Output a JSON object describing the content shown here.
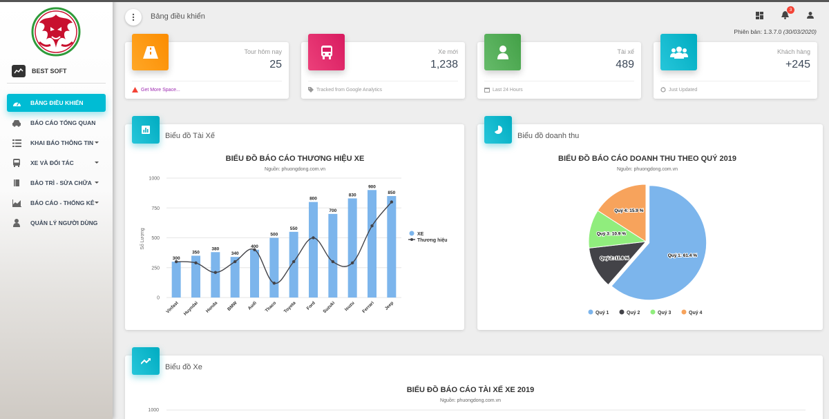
{
  "app": {
    "brand_name": "BEST SOFT",
    "page_title": "Bảng điều khiển",
    "version_label": "Phiên bản: 1.3.7.0",
    "version_date": "(30/03/2020)",
    "notification_count": "3"
  },
  "sidebar": {
    "items": [
      {
        "label": "BẢNG ĐIỀU KHIỂN",
        "icon": "dashboard-icon",
        "active": true
      },
      {
        "label": "BÁO CÁO TỔNG QUAN",
        "icon": "car-icon"
      },
      {
        "label": "KHAI BÁO THÔNG TIN",
        "icon": "list-icon",
        "caret": true
      },
      {
        "label": "XE VÀ ĐỐI TÁC",
        "icon": "bus-icon",
        "caret": true
      },
      {
        "label": "BẢO TRÌ - SỬA CHỮA",
        "icon": "book-icon",
        "caret": true
      },
      {
        "label": "BÁO CÁO - THỐNG KÊ",
        "icon": "area-chart-icon",
        "caret": true
      },
      {
        "label": "QUẢN LÝ NGƯỜI DÙNG",
        "icon": "user-icon"
      }
    ]
  },
  "stats": [
    {
      "label": "Tour hôm nay",
      "value": "25",
      "footer": "Get More Space...",
      "color": "#ff9800"
    },
    {
      "label": "Xe mới",
      "value": "1,238",
      "footer": "Tracked from Google Analytics",
      "color": "#e91e63"
    },
    {
      "label": "Tài xế",
      "value": "489",
      "footer": "Last 24 Hours",
      "color": "#4caf50"
    },
    {
      "label": "Khách hàng",
      "value": "+245",
      "footer": "Just Updated",
      "color": "#00bcd4"
    }
  ],
  "panels": {
    "driver_chart": "Biểu đồ Tài Xế",
    "revenue_chart": "Biểu đồ doanh thu",
    "vehicle_chart": "Biểu đồ Xe"
  },
  "chart_data": [
    {
      "type": "bar",
      "title": "BIỂU ĐỒ BÁO CÁO THƯƠNG HIỆU XE",
      "subtitle": "Nguồn: phuongdong.com.vn",
      "ylabel": "Số Lượng",
      "ylim": [
        0,
        1000
      ],
      "yticks": [
        "0",
        "250",
        "500",
        "750",
        "1000"
      ],
      "categories": [
        "Vinfast",
        "Huyndai",
        "Honda",
        "BMW",
        "Audi",
        "Thaco",
        "Toyota",
        "Ford",
        "Suzuki",
        "Isuzu",
        "Ferrari",
        "Jeep"
      ],
      "series": [
        {
          "name": "XE",
          "kind": "bar",
          "color": "#7cb5ec",
          "values": [
            300,
            350,
            380,
            340,
            400,
            500,
            550,
            800,
            700,
            830,
            900,
            850
          ]
        },
        {
          "name": "Thương hiệu",
          "kind": "spline",
          "color": "#434348",
          "values": [
            300,
            290,
            210,
            300,
            400,
            120,
            300,
            500,
            300,
            290,
            600,
            800
          ]
        }
      ],
      "legend": "right"
    },
    {
      "type": "pie",
      "title": "BIỂU ĐỒ BÁO CÁO DOANH THU THEO QUÝ 2019",
      "subtitle": "Nguồn: phuongdong.com.vn",
      "slices": [
        {
          "name": "Quý 1",
          "value": 61.4,
          "label": "Quý 1: 61.4 %",
          "color": "#7cb5ec"
        },
        {
          "name": "Quý 2",
          "value": 11.8,
          "label": "Quý 2: 11.8 %",
          "color": "#434348"
        },
        {
          "name": "Quý 3",
          "value": 10.9,
          "label": "Quý 3: 10.9 %",
          "color": "#90ed7d"
        },
        {
          "name": "Quý 4",
          "value": 15.9,
          "label": "Quý 4: 15.9 %",
          "color": "#f7a35c"
        }
      ],
      "legend": "bottom"
    },
    {
      "type": "bar",
      "title": "BIỂU ĐỒ BÁO CÁO TÀI XẾ XE 2019",
      "subtitle": "Nguồn: phuongdong.com.vn",
      "yticks": [
        "1000"
      ]
    }
  ]
}
